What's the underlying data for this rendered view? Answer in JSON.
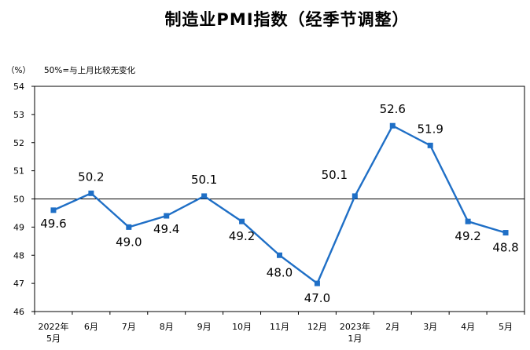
{
  "chart_data": {
    "type": "line",
    "title": "制造业PMI指数（经季节调整）",
    "ylabel": "（%）",
    "annotation": "50%=与上月比较无变化",
    "categories": [
      [
        "2022年",
        "5月"
      ],
      [
        "6月"
      ],
      [
        "7月"
      ],
      [
        "8月"
      ],
      [
        "9月"
      ],
      [
        "10月"
      ],
      [
        "11月"
      ],
      [
        "12月"
      ],
      [
        "2023年",
        "1月"
      ],
      [
        "2月"
      ],
      [
        "3月"
      ],
      [
        "4月"
      ],
      [
        "5月"
      ]
    ],
    "values": [
      49.6,
      50.2,
      49.0,
      49.4,
      50.1,
      49.2,
      48.0,
      47.0,
      50.1,
      52.6,
      51.9,
      49.2,
      48.8
    ],
    "data_labels": [
      "49.6",
      "50.2",
      "49.0",
      "49.4",
      "50.1",
      "49.2",
      "48.0",
      "47.0",
      "50.1",
      "52.6",
      "51.9",
      "49.2",
      "48.8"
    ],
    "yticks": [
      "46",
      "47",
      "48",
      "49",
      "50",
      "51",
      "52",
      "53",
      "54"
    ],
    "ylim": [
      46,
      54
    ],
    "reference_line": 50,
    "grid": false,
    "legend": "none",
    "colors": {
      "series": "#1f6fc6",
      "axis": "#000000",
      "reference": "#000000"
    }
  }
}
